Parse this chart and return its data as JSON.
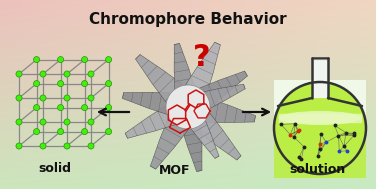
{
  "title": "Chromophore Behavior",
  "title_fontsize": 11,
  "title_fontweight": "bold",
  "title_color": "#111111",
  "label_solid": "solid",
  "label_mof": "MOF",
  "label_solution": "solution",
  "label_fontsize": 9,
  "label_fontweight": "bold",
  "question_mark": "?",
  "question_color": "#cc0000",
  "question_fontsize": 22,
  "node_color": "#44ee11",
  "node_edge": "#229900",
  "flask_outline": "#333333",
  "flask_liquid": "#bbee44",
  "chromophore_color": "#cc1111",
  "arrow_color": "#111111",
  "mof_blade_colors": [
    0.58,
    0.62,
    0.68,
    0.55,
    0.72,
    0.6,
    0.65,
    0.7,
    0.57,
    0.63,
    0.75,
    0.67
  ]
}
